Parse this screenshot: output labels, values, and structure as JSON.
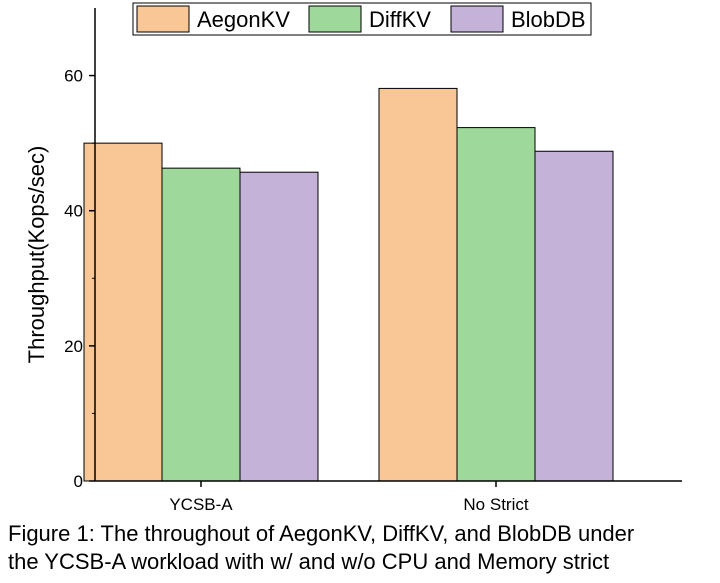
{
  "chart_data": {
    "type": "bar",
    "title": "",
    "xlabel": "",
    "ylabel": "Throughput(Kops/sec)",
    "categories": [
      "YCSB-A",
      "No Strict"
    ],
    "series": [
      {
        "name": "AegonKV",
        "values": [
          50.0,
          58.1
        ],
        "color": "#f9c796"
      },
      {
        "name": "DiffKV",
        "values": [
          46.3,
          52.3
        ],
        "color": "#9ed89a"
      },
      {
        "name": "BlobDB",
        "values": [
          45.7,
          48.8
        ],
        "color": "#c4b2d8"
      }
    ],
    "ylim": [
      0,
      70
    ],
    "yticks": [
      0,
      20,
      40,
      60
    ],
    "grid": false,
    "legend_position": "top"
  },
  "caption": {
    "line1": "Figure 1: The throughout of AegonKV, DiffKV, and BlobDB under",
    "line2": "the YCSB-A workload with w/ and w/o CPU and Memory strict"
  }
}
